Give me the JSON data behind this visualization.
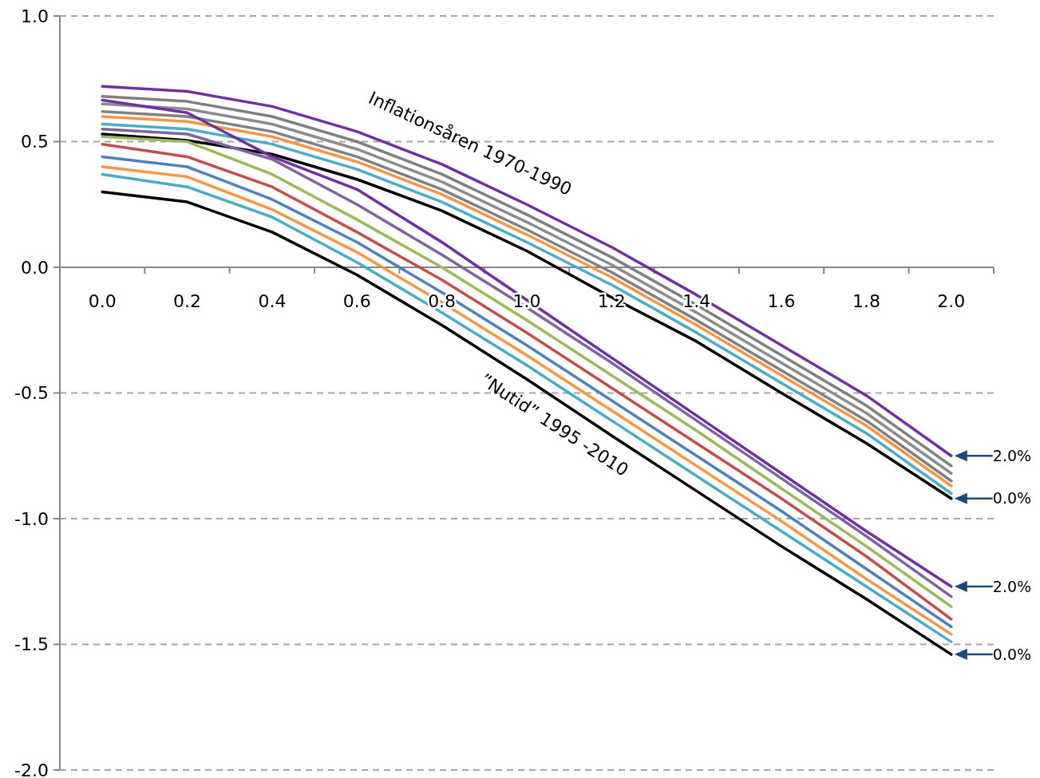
{
  "chart_data": {
    "type": "line",
    "categories": [
      "0.0",
      "0.2",
      "0.4",
      "0.6",
      "0.8",
      "1.0",
      "1.2",
      "1.4",
      "1.6",
      "1.8",
      "2.0"
    ],
    "ylim": [
      -2,
      1
    ],
    "yticks": [
      {
        "value": -2,
        "label": "-2.0"
      },
      {
        "value": -1.5,
        "label": "-1.5"
      },
      {
        "value": -1,
        "label": "-1.0"
      },
      {
        "value": -0.5,
        "label": "-0.5"
      },
      {
        "value": 0,
        "label": "0.0"
      },
      {
        "value": 0.5,
        "label": "0.5"
      },
      {
        "value": 1,
        "label": "1.0"
      }
    ],
    "grid": "y",
    "marker": "none",
    "line_style": "solid",
    "series": [
      {
        "color": "#7030a0",
        "values": [
          0.72,
          0.7,
          0.64,
          0.54,
          0.41,
          0.25,
          0.08,
          -0.11,
          -0.31,
          -0.51,
          -0.75
        ]
      },
      {
        "color": "#808080",
        "values": [
          0.68,
          0.66,
          0.6,
          0.5,
          0.37,
          0.21,
          0.04,
          -0.15,
          -0.35,
          -0.55,
          -0.79
        ]
      },
      {
        "color": "#8c8c8c",
        "values": [
          0.65,
          0.63,
          0.57,
          0.47,
          0.34,
          0.18,
          0.01,
          -0.18,
          -0.38,
          -0.58,
          -0.82
        ]
      },
      {
        "color": "#808080",
        "values": [
          0.62,
          0.6,
          0.54,
          0.44,
          0.31,
          0.15,
          -0.02,
          -0.21,
          -0.41,
          -0.61,
          -0.85
        ]
      },
      {
        "color": "#f79646",
        "values": [
          0.6,
          0.58,
          0.52,
          0.42,
          0.29,
          0.13,
          -0.04,
          -0.23,
          -0.43,
          -0.63,
          -0.87
        ]
      },
      {
        "color": "#4bacc6",
        "values": [
          0.57,
          0.55,
          0.49,
          0.39,
          0.26,
          0.1,
          -0.07,
          -0.26,
          -0.46,
          -0.66,
          -0.9
        ]
      },
      {
        "color": "#000000",
        "values": [
          0.53,
          0.505,
          0.45,
          0.35,
          0.225,
          0.065,
          -0.12,
          -0.295,
          -0.5,
          -0.7,
          -0.92
        ]
      },
      {
        "color": "#7030a0",
        "values": [
          0.665,
          0.615,
          0.44,
          0.31,
          0.1,
          -0.13,
          -0.36,
          -0.59,
          -0.82,
          -1.05,
          -1.27
        ]
      },
      {
        "color": "#8064a2",
        "values": [
          0.55,
          0.53,
          0.43,
          0.25,
          0.05,
          -0.16,
          -0.38,
          -0.61,
          -0.84,
          -1.07,
          -1.31
        ]
      },
      {
        "color": "#9bbb59",
        "values": [
          0.52,
          0.5,
          0.37,
          0.19,
          0.0,
          -0.21,
          -0.43,
          -0.65,
          -0.88,
          -1.11,
          -1.35
        ]
      },
      {
        "color": "#c0504d",
        "values": [
          0.49,
          0.44,
          0.32,
          0.14,
          -0.05,
          -0.26,
          -0.48,
          -0.7,
          -0.92,
          -1.15,
          -1.4
        ]
      },
      {
        "color": "#4f81bd",
        "values": [
          0.44,
          0.4,
          0.27,
          0.1,
          -0.1,
          -0.31,
          -0.53,
          -0.75,
          -0.97,
          -1.2,
          -1.43
        ]
      },
      {
        "color": "#f79646",
        "values": [
          0.4,
          0.36,
          0.23,
          0.06,
          -0.14,
          -0.35,
          -0.57,
          -0.79,
          -1.01,
          -1.24,
          -1.46
        ]
      },
      {
        "color": "#4bacc6",
        "values": [
          0.37,
          0.32,
          0.2,
          0.02,
          -0.18,
          -0.39,
          -0.61,
          -0.83,
          -1.05,
          -1.27,
          -1.49
        ]
      },
      {
        "color": "#000000",
        "values": [
          0.3,
          0.26,
          0.14,
          -0.03,
          -0.23,
          -0.445,
          -0.67,
          -0.89,
          -1.11,
          -1.32,
          -1.54
        ]
      }
    ],
    "annotations": [
      "Inflationsåren 1970-1990",
      "”Nutid” 1995 -2010",
      {
        "text": "2.0%",
        "x": "2.0",
        "y": -0.75
      },
      {
        "text": "0.0%",
        "x": "2.0",
        "y": -0.92
      },
      {
        "text": "2.0%",
        "x": "2.0",
        "y": -1.27
      },
      {
        "text": "0.0%",
        "x": "2.0",
        "y": -1.54
      }
    ]
  }
}
